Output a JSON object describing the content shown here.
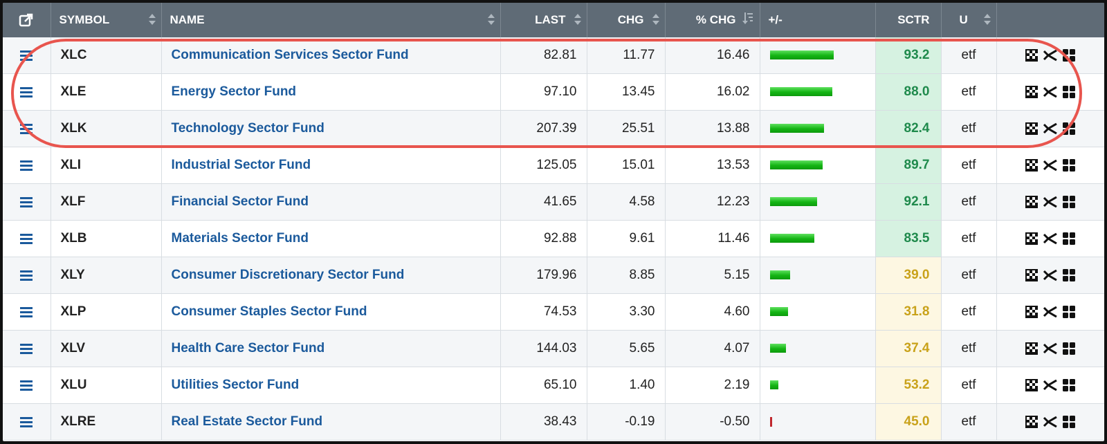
{
  "header": {
    "export_icon": "external-link-icon",
    "symbol": "SYMBOL",
    "name": "NAME",
    "last": "LAST",
    "chg": "CHG",
    "pct_chg": "% CHG",
    "plusminus": "+/-",
    "sctr": "SCTR",
    "u": "U"
  },
  "colors": {
    "header_bg": "#5f6b76",
    "link": "#1b5a9c",
    "sctr_high_bg": "#d6f2e1",
    "sctr_high_text": "#1f8a4c",
    "sctr_low_bg": "#fdf7e2",
    "sctr_low_text": "#c9a21a",
    "bar_positive": "#14b514",
    "bar_negative": "#c0282e",
    "highlight_oval": "#e8554e"
  },
  "rows": [
    {
      "symbol": "XLC",
      "name": "Communication Services Sector Fund",
      "last": "82.81",
      "chg": "11.77",
      "pct": "16.46",
      "bar": 16.46,
      "sctr": "93.2",
      "sctr_level": "high",
      "u": "etf"
    },
    {
      "symbol": "XLE",
      "name": "Energy Sector Fund",
      "last": "97.10",
      "chg": "13.45",
      "pct": "16.02",
      "bar": 16.02,
      "sctr": "88.0",
      "sctr_level": "high",
      "u": "etf"
    },
    {
      "symbol": "XLK",
      "name": "Technology Sector Fund",
      "last": "207.39",
      "chg": "25.51",
      "pct": "13.88",
      "bar": 13.88,
      "sctr": "82.4",
      "sctr_level": "high",
      "u": "etf"
    },
    {
      "symbol": "XLI",
      "name": "Industrial Sector Fund",
      "last": "125.05",
      "chg": "15.01",
      "pct": "13.53",
      "bar": 13.53,
      "sctr": "89.7",
      "sctr_level": "high",
      "u": "etf"
    },
    {
      "symbol": "XLF",
      "name": "Financial Sector Fund",
      "last": "41.65",
      "chg": "4.58",
      "pct": "12.23",
      "bar": 12.23,
      "sctr": "92.1",
      "sctr_level": "high",
      "u": "etf"
    },
    {
      "symbol": "XLB",
      "name": "Materials Sector Fund",
      "last": "92.88",
      "chg": "9.61",
      "pct": "11.46",
      "bar": 11.46,
      "sctr": "83.5",
      "sctr_level": "high",
      "u": "etf"
    },
    {
      "symbol": "XLY",
      "name": "Consumer Discretionary Sector Fund",
      "last": "179.96",
      "chg": "8.85",
      "pct": "5.15",
      "bar": 5.15,
      "sctr": "39.0",
      "sctr_level": "low",
      "u": "etf"
    },
    {
      "symbol": "XLP",
      "name": "Consumer Staples Sector Fund",
      "last": "74.53",
      "chg": "3.30",
      "pct": "4.60",
      "bar": 4.6,
      "sctr": "31.8",
      "sctr_level": "low",
      "u": "etf"
    },
    {
      "symbol": "XLV",
      "name": "Health Care Sector Fund",
      "last": "144.03",
      "chg": "5.65",
      "pct": "4.07",
      "bar": 4.07,
      "sctr": "37.4",
      "sctr_level": "low",
      "u": "etf"
    },
    {
      "symbol": "XLU",
      "name": "Utilities Sector Fund",
      "last": "65.10",
      "chg": "1.40",
      "pct": "2.19",
      "bar": 2.19,
      "sctr": "53.2",
      "sctr_level": "low",
      "u": "etf"
    },
    {
      "symbol": "XLRE",
      "name": "Real Estate Sector Fund",
      "last": "38.43",
      "chg": "-0.19",
      "pct": "-0.50",
      "bar": -0.5,
      "sctr": "45.0",
      "sctr_level": "low",
      "u": "etf"
    }
  ],
  "row_icons": [
    "checkered-chart-icon",
    "crossover-icon",
    "grid-icon"
  ]
}
